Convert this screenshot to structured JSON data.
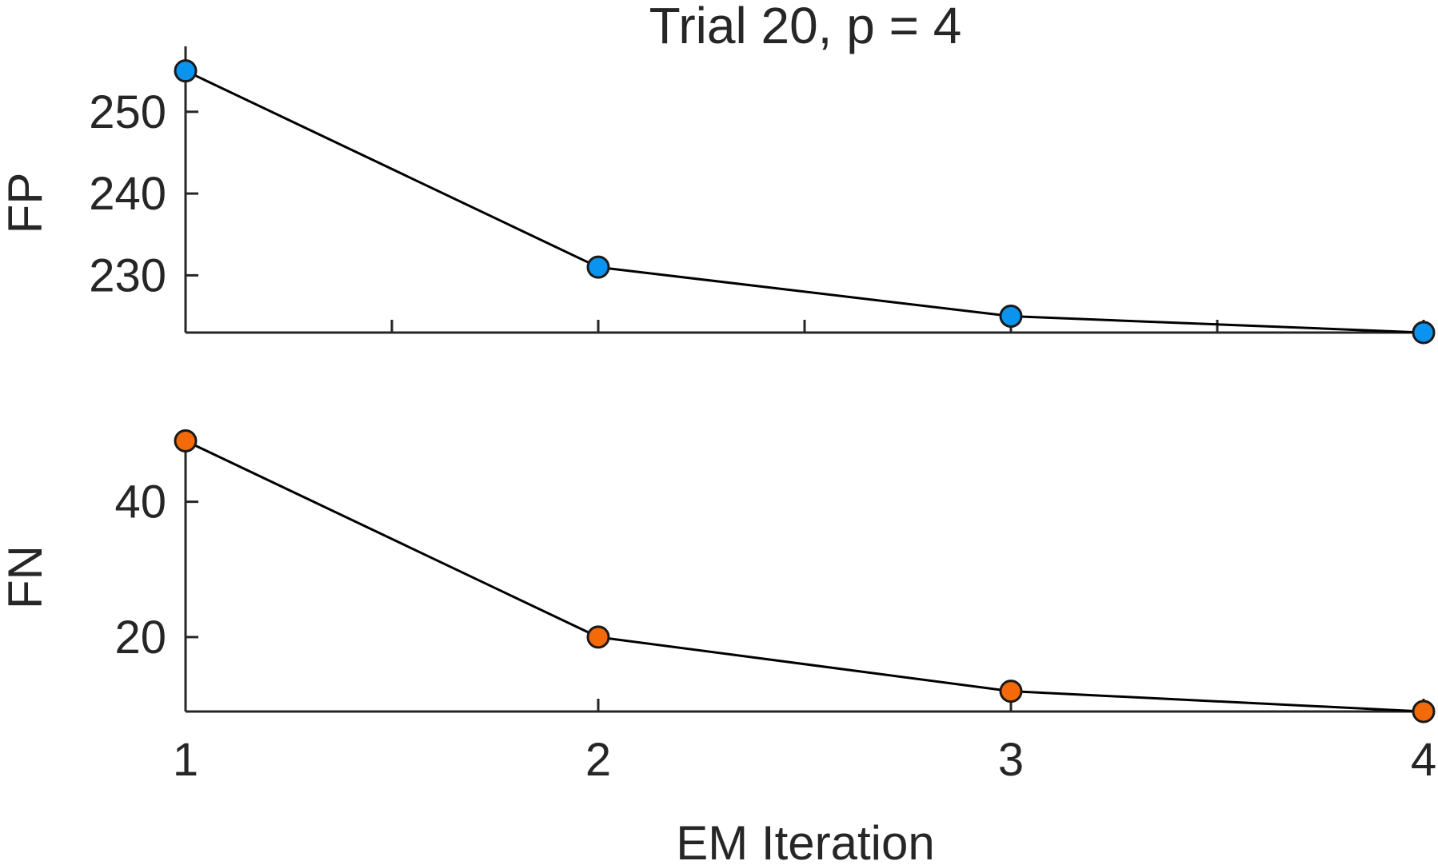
{
  "chart_data": [
    {
      "type": "line",
      "title": "Trial 20, p = 4",
      "xlabel": "",
      "ylabel": "FP",
      "x": [
        1,
        2,
        3,
        4
      ],
      "series": [
        {
          "values": [
            255,
            231,
            225,
            223
          ],
          "color": "#0b93f0"
        }
      ],
      "xlim": [
        1,
        4
      ],
      "ylim": [
        223,
        258
      ],
      "yticks": [
        "230",
        "240",
        "250"
      ],
      "ytick_values": [
        230,
        240,
        250
      ],
      "xtick_values": [
        1,
        1.5,
        2,
        2.5,
        3,
        3.5,
        4
      ],
      "grid": false
    },
    {
      "type": "line",
      "title": "",
      "xlabel": "EM Iteration",
      "ylabel": "FN",
      "x": [
        1,
        2,
        3,
        4
      ],
      "series": [
        {
          "values": [
            49,
            20,
            12,
            9
          ],
          "color": "#f46a08"
        }
      ],
      "xlim": [
        1,
        4
      ],
      "ylim": [
        9,
        50
      ],
      "xticks": [
        "1",
        "2",
        "3",
        "4"
      ],
      "xtick_values": [
        1,
        2,
        3,
        4
      ],
      "yticks": [
        "20",
        "40"
      ],
      "ytick_values": [
        20,
        40
      ],
      "grid": false
    }
  ]
}
